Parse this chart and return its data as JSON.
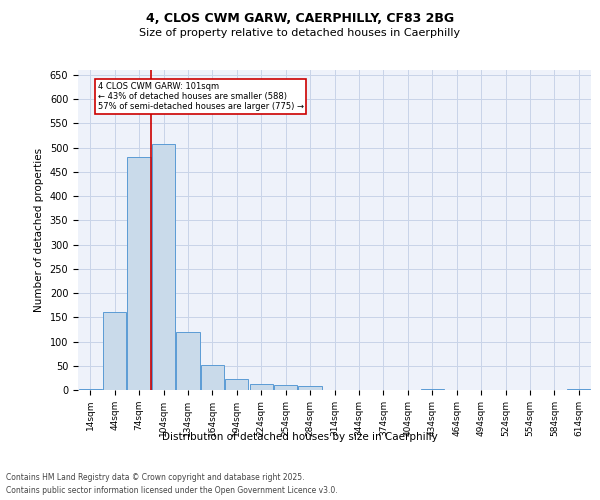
{
  "title_line1": "4, CLOS CWM GARW, CAERPHILLY, CF83 2BG",
  "title_line2": "Size of property relative to detached houses in Caerphilly",
  "xlabel": "Distribution of detached houses by size in Caerphilly",
  "ylabel": "Number of detached properties",
  "categories": [
    "14sqm",
    "44sqm",
    "74sqm",
    "104sqm",
    "134sqm",
    "164sqm",
    "194sqm",
    "224sqm",
    "254sqm",
    "284sqm",
    "314sqm",
    "344sqm",
    "374sqm",
    "404sqm",
    "434sqm",
    "464sqm",
    "494sqm",
    "524sqm",
    "554sqm",
    "584sqm",
    "614sqm"
  ],
  "values": [
    3,
    160,
    480,
    507,
    120,
    52,
    22,
    12,
    11,
    8,
    0,
    0,
    0,
    0,
    3,
    0,
    0,
    0,
    0,
    0,
    3
  ],
  "bar_color": "#c9daea",
  "bar_edge_color": "#5b9bd5",
  "grid_color": "#c8d4e8",
  "background_color": "#eef2fa",
  "vline_color": "#cc0000",
  "annotation_text": "4 CLOS CWM GARW: 101sqm\n← 43% of detached houses are smaller (588)\n57% of semi-detached houses are larger (775) →",
  "annotation_box_color": "#cc0000",
  "footer_line1": "Contains HM Land Registry data © Crown copyright and database right 2025.",
  "footer_line2": "Contains public sector information licensed under the Open Government Licence v3.0.",
  "ylim": [
    0,
    660
  ],
  "yticks": [
    0,
    50,
    100,
    150,
    200,
    250,
    300,
    350,
    400,
    450,
    500,
    550,
    600,
    650
  ],
  "title1_fontsize": 9,
  "title2_fontsize": 8,
  "tick_fontsize": 6.5,
  "ylabel_fontsize": 7.5,
  "xlabel_fontsize": 7.5,
  "footer_fontsize": 5.5,
  "annot_fontsize": 6
}
